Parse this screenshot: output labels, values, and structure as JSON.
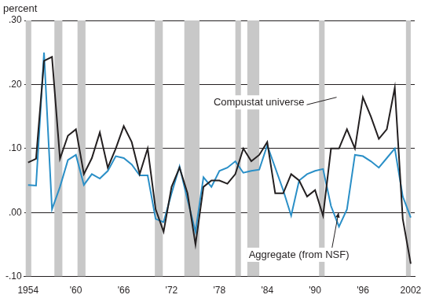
{
  "chart_data": {
    "type": "line",
    "y_label": "percent",
    "x": [
      1954,
      1955,
      1956,
      1957,
      1958,
      1959,
      1960,
      1961,
      1962,
      1963,
      1964,
      1965,
      1966,
      1967,
      1968,
      1969,
      1970,
      1971,
      1972,
      1973,
      1974,
      1975,
      1976,
      1977,
      1978,
      1979,
      1980,
      1981,
      1982,
      1983,
      1984,
      1985,
      1986,
      1987,
      1988,
      1989,
      1990,
      1991,
      1992,
      1993,
      1994,
      1995,
      1996,
      1997,
      1998,
      1999,
      2000,
      2001,
      2002
    ],
    "series": [
      {
        "name": "Compustat universe",
        "color": "#231f20",
        "values": [
          0.078,
          0.084,
          0.237,
          0.243,
          0.084,
          0.12,
          0.13,
          0.06,
          0.085,
          0.125,
          0.07,
          0.1,
          0.135,
          0.11,
          0.06,
          0.1,
          0.005,
          -0.03,
          0.04,
          0.07,
          0.03,
          -0.05,
          0.04,
          0.05,
          0.05,
          0.045,
          0.06,
          0.1,
          0.08,
          0.09,
          0.11,
          0.03,
          0.03,
          0.06,
          0.05,
          0.025,
          0.035,
          -0.005,
          0.1,
          0.1,
          0.13,
          0.1,
          0.18,
          0.15,
          0.115,
          0.13,
          0.195,
          -0.01,
          -0.08
        ]
      },
      {
        "name": "Aggregate (from NSF)",
        "color": "#2a8fc7",
        "values": [
          0.043,
          0.042,
          0.25,
          0.005,
          0.04,
          0.082,
          0.09,
          0.043,
          0.06,
          0.053,
          0.065,
          0.088,
          0.085,
          0.075,
          0.058,
          0.058,
          -0.01,
          -0.015,
          0.03,
          0.072,
          0.02,
          -0.03,
          0.055,
          0.04,
          0.065,
          0.07,
          0.08,
          0.062,
          0.065,
          0.067,
          0.105,
          0.07,
          0.035,
          -0.005,
          0.05,
          0.06,
          0.065,
          0.068,
          0.01,
          -0.022,
          0.005,
          0.09,
          0.088,
          0.08,
          0.07,
          0.085,
          0.1,
          0.025,
          -0.008
        ]
      }
    ],
    "recessions": [
      [
        1953.7,
        1954.4
      ],
      [
        1957.3,
        1958.3
      ],
      [
        1960.2,
        1961.2
      ],
      [
        1969.9,
        1970.9
      ],
      [
        1973.6,
        1975.5
      ],
      [
        1980.0,
        1980.7
      ],
      [
        1981.5,
        1983.0
      ],
      [
        1990.5,
        1991.2
      ],
      [
        2001.4,
        2002.0
      ]
    ],
    "recession_color": "#c8c8c8",
    "xlim": [
      1953.5,
      2002.5
    ],
    "xticks": [
      1954,
      {
        "value": 1960,
        "label": "'60"
      },
      {
        "value": 1966,
        "label": "'66"
      },
      {
        "value": 1972,
        "label": "'72"
      },
      {
        "value": 1978,
        "label": "'78"
      },
      {
        "value": 1984,
        "label": "'84"
      },
      {
        "value": 1990,
        "label": "'90"
      },
      {
        "value": 1996,
        "label": "'96"
      },
      2002
    ],
    "ylim": [
      -0.1,
      0.3
    ],
    "yticks": [
      {
        "value": -0.1,
        "label": "-.10"
      },
      {
        "value": 0,
        "label": ".00"
      },
      {
        "value": 0.1,
        "label": ".10"
      },
      {
        "value": 0.2,
        "label": ".20"
      },
      {
        "value": 0.3,
        "label": ".30"
      }
    ],
    "grid": true
  }
}
